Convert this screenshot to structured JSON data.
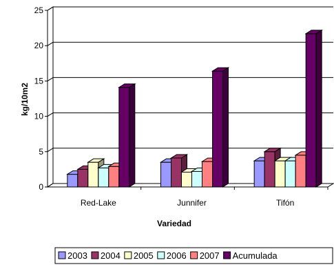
{
  "chart_data": {
    "type": "bar",
    "categories": [
      "Red-Lake",
      "Junnifer",
      "Tifón"
    ],
    "series": [
      {
        "name": "2003",
        "color": "#9999ff",
        "values": [
          1.8,
          3.5,
          3.7
        ]
      },
      {
        "name": "2004",
        "color": "#993366",
        "values": [
          2.5,
          4.1,
          5.0
        ]
      },
      {
        "name": "2005",
        "color": "#ffffcc",
        "values": [
          3.5,
          2.1,
          3.7
        ]
      },
      {
        "name": "2006",
        "color": "#ccffff",
        "values": [
          2.7,
          2.2,
          3.7
        ]
      },
      {
        "name": "2007",
        "color": "#ff8080",
        "values": [
          2.9,
          3.6,
          4.5
        ]
      },
      {
        "name": "Acumulada",
        "color": "#660066",
        "values": [
          14.1,
          16.4,
          21.7
        ]
      }
    ],
    "yticks": [
      0,
      5,
      10,
      15,
      20,
      25
    ],
    "ylim": [
      0,
      25
    ],
    "xlabel": "Variedad",
    "ylabel": "kg/10m2",
    "title": "",
    "grid": false,
    "legend_position": "bottom"
  }
}
